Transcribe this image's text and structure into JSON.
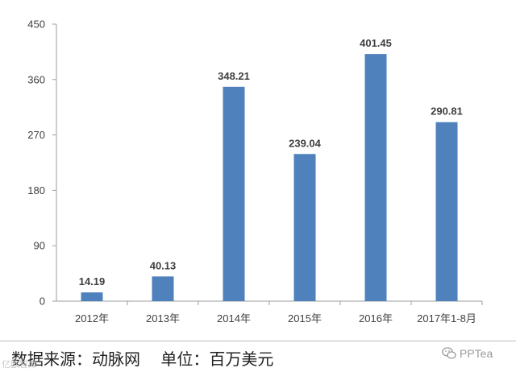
{
  "chart_data": {
    "type": "bar",
    "categories": [
      "2012年",
      "2013年",
      "2014年",
      "2015年",
      "2016年",
      "2017年1-8月"
    ],
    "values": [
      14.19,
      40.13,
      348.21,
      239.04,
      401.45,
      290.81
    ],
    "value_labels": [
      "14.19",
      "40.13",
      "348.21",
      "239.04",
      "401.45",
      "290.81"
    ],
    "y_ticks": [
      0,
      90,
      180,
      270,
      360,
      450
    ],
    "ylim": [
      0,
      450
    ],
    "grid": false,
    "bar_color": "#4f81bd",
    "title": "",
    "xlabel": "",
    "ylabel": ""
  },
  "footer": {
    "source_text": "数据来源：动脉网    单位：百万美元",
    "watermark": "亿欧智库",
    "brand": "PPTea"
  }
}
